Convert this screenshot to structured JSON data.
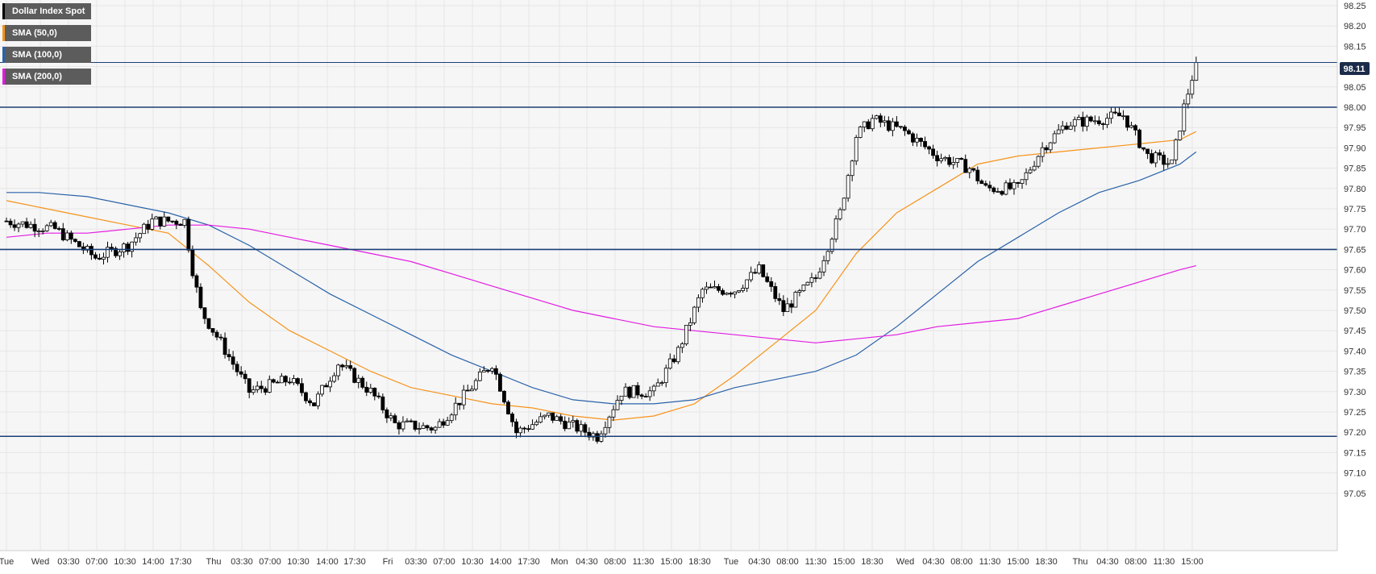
{
  "legend": [
    {
      "label": "Dollar Index Spot",
      "color": "#000000"
    },
    {
      "label": "SMA (50,0)",
      "color": "#f7931a"
    },
    {
      "label": "SMA (100,0)",
      "color": "#2962a8"
    },
    {
      "label": "SMA (200,0)",
      "color": "#e21ce2"
    }
  ],
  "last_price": "98.11",
  "chart_data": {
    "type": "candlestick",
    "title": "Dollar Index Spot",
    "ylim": [
      97.0,
      98.25
    ],
    "y_ticks": [
      "98.25",
      "98.20",
      "98.15",
      "98.10",
      "98.05",
      "98.00",
      "97.95",
      "97.90",
      "97.85",
      "97.80",
      "97.75",
      "97.70",
      "97.65",
      "97.60",
      "97.55",
      "97.50",
      "97.45",
      "97.40",
      "97.35",
      "97.30",
      "97.25",
      "97.20",
      "97.15",
      "97.10",
      "97.05"
    ],
    "x_ticks": [
      "Tue",
      "Wed",
      "03:30",
      "07:00",
      "10:30",
      "14:00",
      "17:30",
      "Thu",
      "03:30",
      "07:00",
      "10:30",
      "14:00",
      "17:30",
      "Fri",
      "03:30",
      "07:00",
      "10:30",
      "14:00",
      "17:30",
      "Mon",
      "04:30",
      "08:00",
      "11:30",
      "15:00",
      "18:30",
      "Tue",
      "04:30",
      "08:00",
      "11:30",
      "15:00",
      "18:30",
      "Wed",
      "04:30",
      "08:00",
      "11:30",
      "15:00",
      "18:30",
      "Thu",
      "04:30",
      "08:00",
      "11:30",
      "15:00"
    ],
    "horizontal_levels": [
      98.11,
      98.0,
      97.65,
      97.19
    ],
    "candle_count": 294,
    "ohlc_anchors": [
      {
        "i": 0,
        "price": 97.72
      },
      {
        "i": 12,
        "price": 97.7
      },
      {
        "i": 22,
        "price": 97.63
      },
      {
        "i": 30,
        "price": 97.66
      },
      {
        "i": 36,
        "price": 97.72
      },
      {
        "i": 44,
        "price": 97.72
      },
      {
        "i": 46,
        "price": 97.6
      },
      {
        "i": 48,
        "price": 97.5
      },
      {
        "i": 53,
        "price": 97.42
      },
      {
        "i": 60,
        "price": 97.3
      },
      {
        "i": 70,
        "price": 97.33
      },
      {
        "i": 76,
        "price": 97.27
      },
      {
        "i": 82,
        "price": 97.37
      },
      {
        "i": 90,
        "price": 97.3
      },
      {
        "i": 96,
        "price": 97.22
      },
      {
        "i": 106,
        "price": 97.21
      },
      {
        "i": 114,
        "price": 97.3
      },
      {
        "i": 120,
        "price": 97.37
      },
      {
        "i": 126,
        "price": 97.2
      },
      {
        "i": 134,
        "price": 97.24
      },
      {
        "i": 146,
        "price": 97.19
      },
      {
        "i": 152,
        "price": 97.3
      },
      {
        "i": 160,
        "price": 97.3
      },
      {
        "i": 166,
        "price": 97.4
      },
      {
        "i": 172,
        "price": 97.55
      },
      {
        "i": 180,
        "price": 97.55
      },
      {
        "i": 186,
        "price": 97.6
      },
      {
        "i": 192,
        "price": 97.5
      },
      {
        "i": 200,
        "price": 97.58
      },
      {
        "i": 206,
        "price": 97.74
      },
      {
        "i": 210,
        "price": 97.93
      },
      {
        "i": 214,
        "price": 97.97
      },
      {
        "i": 222,
        "price": 97.94
      },
      {
        "i": 230,
        "price": 97.88
      },
      {
        "i": 238,
        "price": 97.85
      },
      {
        "i": 242,
        "price": 97.8
      },
      {
        "i": 250,
        "price": 97.8
      },
      {
        "i": 256,
        "price": 97.9
      },
      {
        "i": 262,
        "price": 97.96
      },
      {
        "i": 270,
        "price": 97.97
      },
      {
        "i": 276,
        "price": 97.98
      },
      {
        "i": 282,
        "price": 97.88
      },
      {
        "i": 288,
        "price": 97.86
      },
      {
        "i": 291,
        "price": 98.0
      },
      {
        "i": 294,
        "price": 98.11
      }
    ],
    "series": [
      {
        "name": "SMA (50,0)",
        "color": "#f7931a",
        "points": [
          [
            0,
            97.77
          ],
          [
            10,
            97.75
          ],
          [
            20,
            97.73
          ],
          [
            30,
            97.71
          ],
          [
            40,
            97.69
          ],
          [
            50,
            97.61
          ],
          [
            60,
            97.52
          ],
          [
            70,
            97.45
          ],
          [
            80,
            97.4
          ],
          [
            90,
            97.35
          ],
          [
            100,
            97.31
          ],
          [
            110,
            97.29
          ],
          [
            120,
            97.27
          ],
          [
            130,
            97.26
          ],
          [
            140,
            97.24
          ],
          [
            150,
            97.23
          ],
          [
            160,
            97.24
          ],
          [
            170,
            97.27
          ],
          [
            180,
            97.34
          ],
          [
            190,
            97.42
          ],
          [
            200,
            97.5
          ],
          [
            210,
            97.64
          ],
          [
            220,
            97.74
          ],
          [
            230,
            97.8
          ],
          [
            240,
            97.86
          ],
          [
            250,
            97.88
          ],
          [
            260,
            97.89
          ],
          [
            270,
            97.9
          ],
          [
            280,
            97.91
          ],
          [
            290,
            97.92
          ],
          [
            294,
            97.94
          ]
        ]
      },
      {
        "name": "SMA (100,0)",
        "color": "#2962a8",
        "points": [
          [
            0,
            97.79
          ],
          [
            8,
            97.79
          ],
          [
            20,
            97.78
          ],
          [
            30,
            97.76
          ],
          [
            40,
            97.74
          ],
          [
            50,
            97.71
          ],
          [
            60,
            97.66
          ],
          [
            70,
            97.6
          ],
          [
            80,
            97.54
          ],
          [
            90,
            97.49
          ],
          [
            100,
            97.44
          ],
          [
            110,
            97.39
          ],
          [
            120,
            97.35
          ],
          [
            130,
            97.31
          ],
          [
            140,
            97.28
          ],
          [
            150,
            97.27
          ],
          [
            160,
            97.27
          ],
          [
            170,
            97.28
          ],
          [
            180,
            97.31
          ],
          [
            190,
            97.33
          ],
          [
            200,
            97.35
          ],
          [
            210,
            97.39
          ],
          [
            220,
            97.46
          ],
          [
            230,
            97.54
          ],
          [
            240,
            97.62
          ],
          [
            250,
            97.68
          ],
          [
            260,
            97.74
          ],
          [
            270,
            97.79
          ],
          [
            280,
            97.82
          ],
          [
            290,
            97.86
          ],
          [
            294,
            97.89
          ]
        ]
      },
      {
        "name": "SMA (200,0)",
        "color": "#e21ce2",
        "points": [
          [
            0,
            97.68
          ],
          [
            10,
            97.69
          ],
          [
            20,
            97.69
          ],
          [
            30,
            97.7
          ],
          [
            40,
            97.71
          ],
          [
            50,
            97.71
          ],
          [
            60,
            97.7
          ],
          [
            70,
            97.68
          ],
          [
            80,
            97.66
          ],
          [
            90,
            97.64
          ],
          [
            100,
            97.62
          ],
          [
            110,
            97.59
          ],
          [
            120,
            97.56
          ],
          [
            130,
            97.53
          ],
          [
            140,
            97.5
          ],
          [
            150,
            97.48
          ],
          [
            160,
            97.46
          ],
          [
            170,
            97.45
          ],
          [
            180,
            97.44
          ],
          [
            190,
            97.43
          ],
          [
            200,
            97.42
          ],
          [
            210,
            97.43
          ],
          [
            220,
            97.44
          ],
          [
            230,
            97.46
          ],
          [
            240,
            97.47
          ],
          [
            250,
            97.48
          ],
          [
            260,
            97.51
          ],
          [
            270,
            97.54
          ],
          [
            280,
            97.57
          ],
          [
            290,
            97.6
          ],
          [
            294,
            97.61
          ]
        ]
      }
    ]
  }
}
